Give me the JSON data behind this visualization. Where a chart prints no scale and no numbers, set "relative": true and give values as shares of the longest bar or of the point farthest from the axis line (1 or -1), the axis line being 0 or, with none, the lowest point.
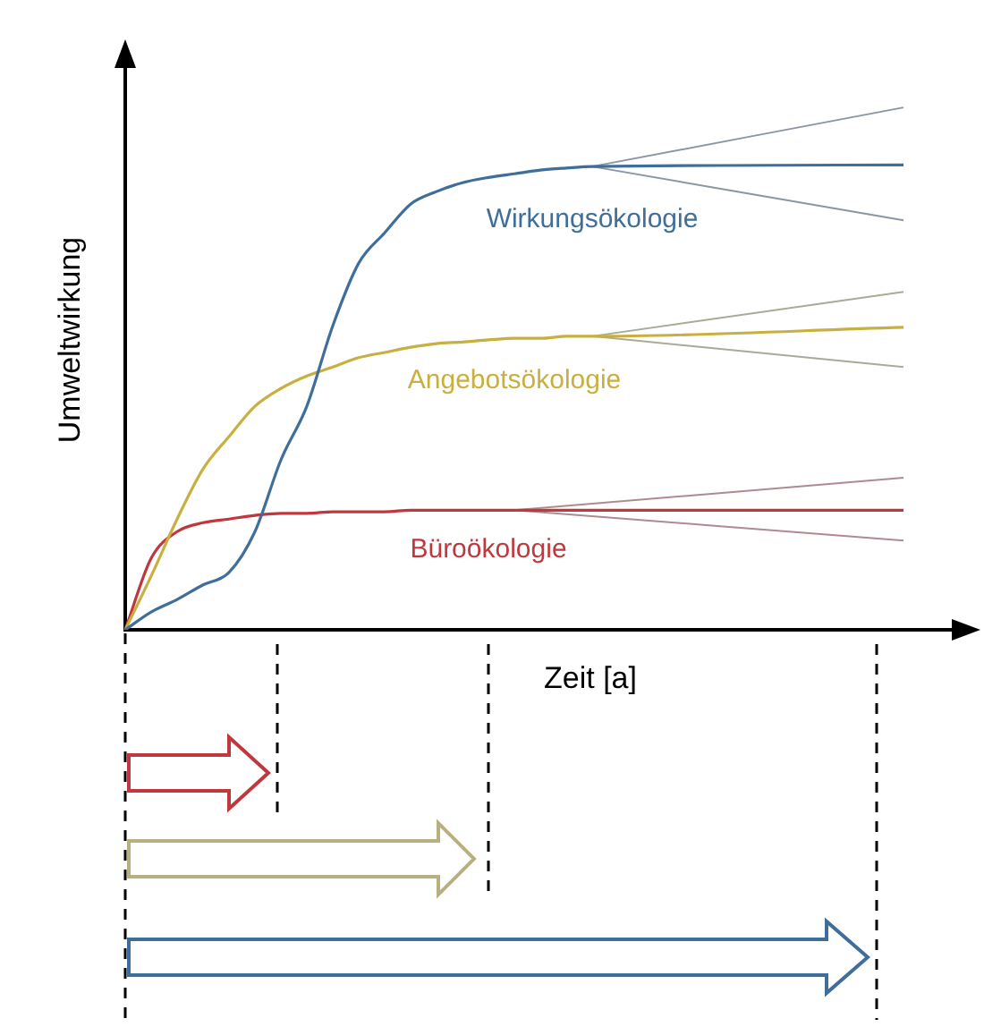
{
  "chart_data": {
    "type": "line",
    "relative": true,
    "xlabel": "Zeit [a]",
    "ylabel": "Umweltwirkung",
    "tick_labels": false,
    "grid": false,
    "legend": false,
    "categories": [
      null,
      null,
      null,
      null,
      null,
      null,
      null,
      null,
      null,
      null,
      null,
      null,
      null,
      null,
      null,
      null,
      null,
      null,
      null,
      null,
      null,
      null,
      null,
      null,
      null,
      null,
      null,
      null,
      null,
      null,
      null
    ],
    "series": [
      {
        "name": "Wirkungsökologie",
        "color": "#3f6e9a",
        "values": [
          0,
          0.034,
          0.058,
          0.086,
          0.11,
          0.188,
          0.325,
          0.428,
          0.582,
          0.702,
          0.76,
          0.815,
          0.839,
          0.856,
          0.866,
          0.873,
          0.88,
          0.884,
          0.887,
          null,
          null,
          null,
          null,
          null,
          null,
          null,
          null,
          null,
          null,
          null,
          0.89
        ]
      },
      {
        "color": "#8a96a3",
        "values": [
          null,
          null,
          null,
          null,
          null,
          null,
          null,
          null,
          null,
          null,
          null,
          null,
          null,
          null,
          null,
          null,
          null,
          null,
          0.887,
          null,
          null,
          null,
          null,
          null,
          null,
          null,
          null,
          null,
          null,
          null,
          1
        ]
      },
      {
        "color": "#8a96a3",
        "values": [
          null,
          null,
          null,
          null,
          null,
          null,
          null,
          null,
          null,
          null,
          null,
          null,
          null,
          null,
          null,
          null,
          null,
          null,
          0.887,
          null,
          null,
          null,
          null,
          null,
          null,
          null,
          null,
          null,
          null,
          null,
          0.784
        ]
      },
      {
        "name": "Angebotsökologie",
        "color": "#c8b040",
        "values": [
          0,
          0.103,
          0.212,
          0.308,
          0.37,
          0.428,
          0.462,
          0.486,
          0.503,
          0.521,
          0.531,
          0.541,
          0.548,
          0.551,
          0.555,
          0.558,
          0.558,
          0.562,
          0.562,
          null,
          null,
          null,
          null,
          null,
          null,
          null,
          null,
          null,
          null,
          null,
          0.579
        ]
      },
      {
        "color": "#a9ab98",
        "values": [
          null,
          null,
          null,
          null,
          null,
          null,
          null,
          null,
          null,
          null,
          null,
          null,
          null,
          null,
          null,
          null,
          null,
          null,
          0.562,
          null,
          null,
          null,
          null,
          null,
          null,
          null,
          null,
          null,
          null,
          null,
          0.647
        ]
      },
      {
        "color": "#a9ab98",
        "values": [
          null,
          null,
          null,
          null,
          null,
          null,
          null,
          null,
          null,
          null,
          null,
          null,
          null,
          null,
          null,
          null,
          null,
          null,
          0.562,
          null,
          null,
          null,
          null,
          null,
          null,
          null,
          null,
          null,
          null,
          null,
          0.503
        ]
      },
      {
        "name": "Büroökologie",
        "color": "#c0383d",
        "values": [
          0,
          0.137,
          0.188,
          0.205,
          0.212,
          0.219,
          0.223,
          0.223,
          0.226,
          0.226,
          0.226,
          0.229,
          0.229,
          0.229,
          0.229,
          0.229,
          null,
          null,
          null,
          null,
          null,
          null,
          null,
          null,
          null,
          null,
          null,
          null,
          null,
          null,
          0.229
        ]
      },
      {
        "color": "#b08a90",
        "values": [
          null,
          null,
          null,
          null,
          null,
          null,
          null,
          null,
          null,
          null,
          null,
          null,
          null,
          null,
          null,
          0.229,
          null,
          null,
          null,
          null,
          null,
          null,
          null,
          null,
          null,
          null,
          null,
          null,
          null,
          null,
          0.291
        ]
      },
      {
        "color": "#b08a90",
        "values": [
          null,
          null,
          null,
          null,
          null,
          null,
          null,
          null,
          null,
          null,
          null,
          null,
          null,
          null,
          null,
          0.229,
          null,
          null,
          null,
          null,
          null,
          null,
          null,
          null,
          null,
          null,
          null,
          null,
          null,
          null,
          0.171
        ]
      }
    ]
  }
}
